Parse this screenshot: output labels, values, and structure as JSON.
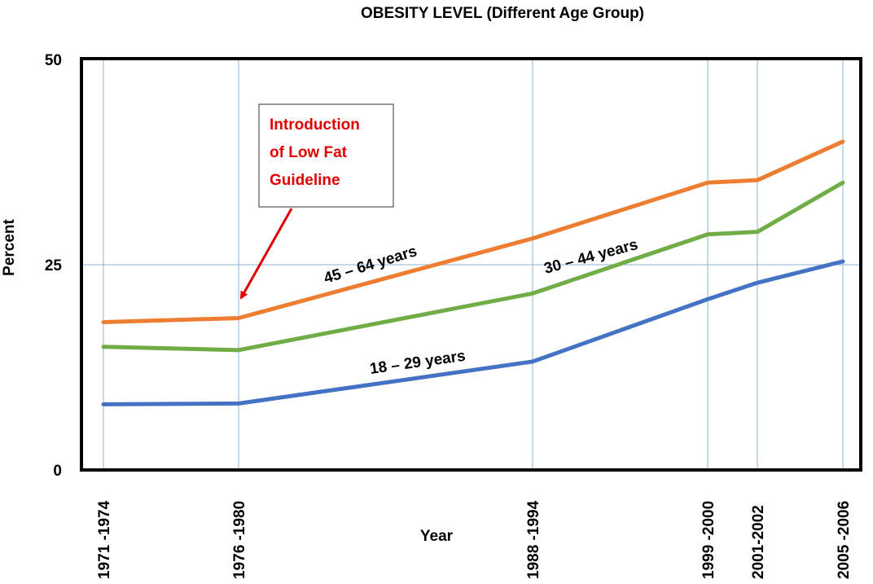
{
  "chart_data": {
    "type": "line",
    "title": "OBESITY LEVEL (Different Age Group)",
    "x_label": "Year",
    "y_label": "Percent",
    "categories": [
      "1971 -1974",
      "1976 -1980",
      "1988 -1994",
      "1999 -2000",
      "2001-2002",
      "2005 -2006"
    ],
    "series": [
      {
        "name": "45 – 64 years",
        "color": "#ed7d31",
        "values": [
          18,
          18.5,
          28.2,
          35,
          35.3,
          40
        ]
      },
      {
        "name": "30 – 44 years",
        "color": "#70ad47",
        "values": [
          15,
          14.6,
          21.5,
          28.7,
          29,
          35
        ]
      },
      {
        "name": "18 – 29 years",
        "color": "#4472c4",
        "values": [
          8,
          8.1,
          13.2,
          20.8,
          22.8,
          25.4
        ]
      }
    ],
    "ylim": [
      0,
      50
    ],
    "yticks": [
      0,
      25,
      50
    ],
    "grid": true,
    "annotation": [
      "Introduction",
      "of Low Fat",
      "Guideline"
    ]
  }
}
